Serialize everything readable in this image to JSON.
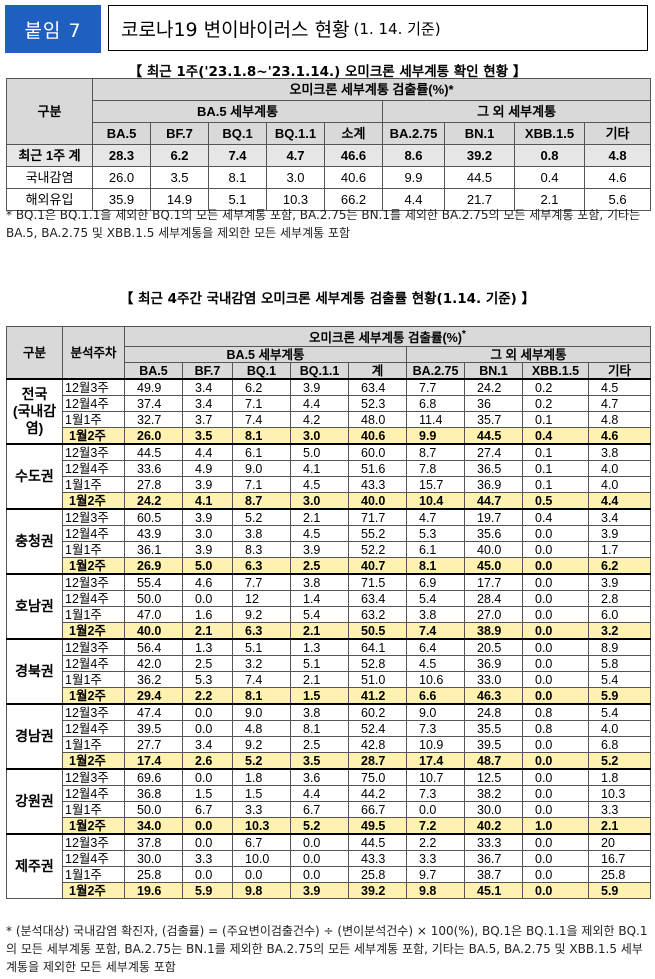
{
  "header": {
    "tag": "붙임 7",
    "title": "코로나19 변이바이러스 현황",
    "title_sub": "(1. 14. 기준)"
  },
  "table1": {
    "caption": "【 최근 1주('23.1.8~'23.1.14.) 오미크론 세부계통 확인 현황 】",
    "h_gubun": "구분",
    "h_main": "오미크론 세부계통 검출률(%)*",
    "h_ba5": "BA.5 세부계통",
    "h_other": "그 외 세부계통",
    "cols": [
      "BA.5",
      "BF.7",
      "BQ.1",
      "BQ.1.1",
      "소계",
      "BA.2.75",
      "BN.1",
      "XBB.1.5",
      "기타"
    ],
    "rows": [
      {
        "label": "최근 1주 계",
        "values": [
          "28.3",
          "6.2",
          "7.4",
          "4.7",
          "46.6",
          "8.6",
          "39.2",
          "0.8",
          "4.8"
        ]
      },
      {
        "label": "국내감염",
        "values": [
          "26.0",
          "3.5",
          "8.1",
          "3.0",
          "40.6",
          "9.9",
          "44.5",
          "0.4",
          "4.6"
        ]
      },
      {
        "label": "해외유입",
        "values": [
          "35.9",
          "14.9",
          "5.1",
          "10.3",
          "66.2",
          "4.4",
          "21.7",
          "2.1",
          "5.6"
        ]
      }
    ],
    "note": "* BQ.1은 BQ.1.1을 제외한 BQ.1의 모든 세부계통 포함, BA.2.75는 BN.1를 제외한 BA.2.75의 모든 세부계통 포함, 기타는 BA.5, BA.2.75 및 XBB.1.5 세부계통을 제외한 모든 세부계통 포함"
  },
  "table2": {
    "caption": "【 최근 4주간 국내감염 오미크론 세부계통 검출률 현황(1.14. 기준) 】",
    "h_gubun": "구분",
    "h_week": "분석주차",
    "h_main": "오미크론 세부계통 검출률(%)",
    "h_main_sup": "*",
    "h_ba5": "BA.5 세부계통",
    "h_other": "그 외 세부계통",
    "cols": [
      "BA.5",
      "BF.7",
      "BQ.1",
      "BQ.1.1",
      "계",
      "BA.2.75",
      "BN.1",
      "XBB.1.5",
      "기타"
    ],
    "weeks": [
      "12월3주",
      "12월4주",
      "1월1주",
      "1월2주"
    ],
    "regions": [
      {
        "name": "전국\n(국내감염)",
        "rows": [
          [
            "49.9",
            "3.4",
            "6.2",
            "3.9",
            "63.4",
            "7.7",
            "24.2",
            "0.2",
            "4.5"
          ],
          [
            "37.4",
            "3.4",
            "7.1",
            "4.4",
            "52.3",
            "6.8",
            "36",
            "0.2",
            "4.7"
          ],
          [
            "32.7",
            "3.7",
            "7.4",
            "4.2",
            "48.0",
            "11.4",
            "35.7",
            "0.1",
            "4.8"
          ],
          [
            "26.0",
            "3.5",
            "8.1",
            "3.0",
            "40.6",
            "9.9",
            "44.5",
            "0.4",
            "4.6"
          ]
        ]
      },
      {
        "name": "수도권",
        "rows": [
          [
            "44.5",
            "4.4",
            "6.1",
            "5.0",
            "60.0",
            "8.7",
            "27.4",
            "0.1",
            "3.8"
          ],
          [
            "33.6",
            "4.9",
            "9.0",
            "4.1",
            "51.6",
            "7.8",
            "36.5",
            "0.1",
            "4.0"
          ],
          [
            "27.8",
            "3.9",
            "7.1",
            "4.5",
            "43.3",
            "15.7",
            "36.9",
            "0.1",
            "4.0"
          ],
          [
            "24.2",
            "4.1",
            "8.7",
            "3.0",
            "40.0",
            "10.4",
            "44.7",
            "0.5",
            "4.4"
          ]
        ]
      },
      {
        "name": "충청권",
        "rows": [
          [
            "60.5",
            "3.9",
            "5.2",
            "2.1",
            "71.7",
            "4.7",
            "19.7",
            "0.4",
            "3.4"
          ],
          [
            "43.9",
            "3.0",
            "3.8",
            "4.5",
            "55.2",
            "5.3",
            "35.6",
            "0.0",
            "3.9"
          ],
          [
            "36.1",
            "3.9",
            "8.3",
            "3.9",
            "52.2",
            "6.1",
            "40.0",
            "0.0",
            "1.7"
          ],
          [
            "26.9",
            "5.0",
            "6.3",
            "2.5",
            "40.7",
            "8.1",
            "45.0",
            "0.0",
            "6.2"
          ]
        ]
      },
      {
        "name": "호남권",
        "rows": [
          [
            "55.4",
            "4.6",
            "7.7",
            "3.8",
            "71.5",
            "6.9",
            "17.7",
            "0.0",
            "3.9"
          ],
          [
            "50.0",
            "0.0",
            "12",
            "1.4",
            "63.4",
            "5.4",
            "28.4",
            "0.0",
            "2.8"
          ],
          [
            "47.0",
            "1.6",
            "9.2",
            "5.4",
            "63.2",
            "3.8",
            "27.0",
            "0.0",
            "6.0"
          ],
          [
            "40.0",
            "2.1",
            "6.3",
            "2.1",
            "50.5",
            "7.4",
            "38.9",
            "0.0",
            "3.2"
          ]
        ]
      },
      {
        "name": "경북권",
        "rows": [
          [
            "56.4",
            "1.3",
            "5.1",
            "1.3",
            "64.1",
            "6.4",
            "20.5",
            "0.0",
            "8.9"
          ],
          [
            "42.0",
            "2.5",
            "3.2",
            "5.1",
            "52.8",
            "4.5",
            "36.9",
            "0.0",
            "5.8"
          ],
          [
            "36.2",
            "5.3",
            "7.4",
            "2.1",
            "51.0",
            "10.6",
            "33.0",
            "0.0",
            "5.4"
          ],
          [
            "29.4",
            "2.2",
            "8.1",
            "1.5",
            "41.2",
            "6.6",
            "46.3",
            "0.0",
            "5.9"
          ]
        ]
      },
      {
        "name": "경남권",
        "rows": [
          [
            "47.4",
            "0.0",
            "9.0",
            "3.8",
            "60.2",
            "9.0",
            "24.8",
            "0.8",
            "5.4"
          ],
          [
            "39.5",
            "0.0",
            "4.8",
            "8.1",
            "52.4",
            "7.3",
            "35.5",
            "0.8",
            "4.0"
          ],
          [
            "27.7",
            "3.4",
            "9.2",
            "2.5",
            "42.8",
            "10.9",
            "39.5",
            "0.0",
            "6.8"
          ],
          [
            "17.4",
            "2.6",
            "5.2",
            "3.5",
            "28.7",
            "17.4",
            "48.7",
            "0.0",
            "5.2"
          ]
        ]
      },
      {
        "name": "강원권",
        "rows": [
          [
            "69.6",
            "0.0",
            "1.8",
            "3.6",
            "75.0",
            "10.7",
            "12.5",
            "0.0",
            "1.8"
          ],
          [
            "36.8",
            "1.5",
            "1.5",
            "4.4",
            "44.2",
            "7.3",
            "38.2",
            "0.0",
            "10.3"
          ],
          [
            "50.0",
            "6.7",
            "3.3",
            "6.7",
            "66.7",
            "0.0",
            "30.0",
            "0.0",
            "3.3"
          ],
          [
            "34.0",
            "0.0",
            "10.3",
            "5.2",
            "49.5",
            "7.2",
            "40.2",
            "1.0",
            "2.1"
          ]
        ]
      },
      {
        "name": "제주권",
        "rows": [
          [
            "37.8",
            "0.0",
            "6.7",
            "0.0",
            "44.5",
            "2.2",
            "33.3",
            "0.0",
            "20"
          ],
          [
            "30.0",
            "3.3",
            "10.0",
            "0.0",
            "43.3",
            "3.3",
            "36.7",
            "0.0",
            "16.7"
          ],
          [
            "25.8",
            "0.0",
            "0.0",
            "0.0",
            "25.8",
            "9.7",
            "38.7",
            "0.0",
            "25.8"
          ],
          [
            "19.6",
            "5.9",
            "9.8",
            "3.9",
            "39.2",
            "9.8",
            "45.1",
            "0.0",
            "5.9"
          ]
        ]
      }
    ],
    "note": "* (분석대상) 국내감염 확진자, (검출률) = (주요변이검출건수) ÷ (변이분석건수) × 100(%), BQ.1은 BQ.1.1을 제외한 BQ.1의 모든 세부계통 포함, BA.2.75는 BN.1를 제외한 BA.2.75의 모든 세부계통 포함, 기타는 BA.5, BA.2.75 및 XBB.1.5 세부계통을 제외한 모든 세부계통 포함"
  }
}
